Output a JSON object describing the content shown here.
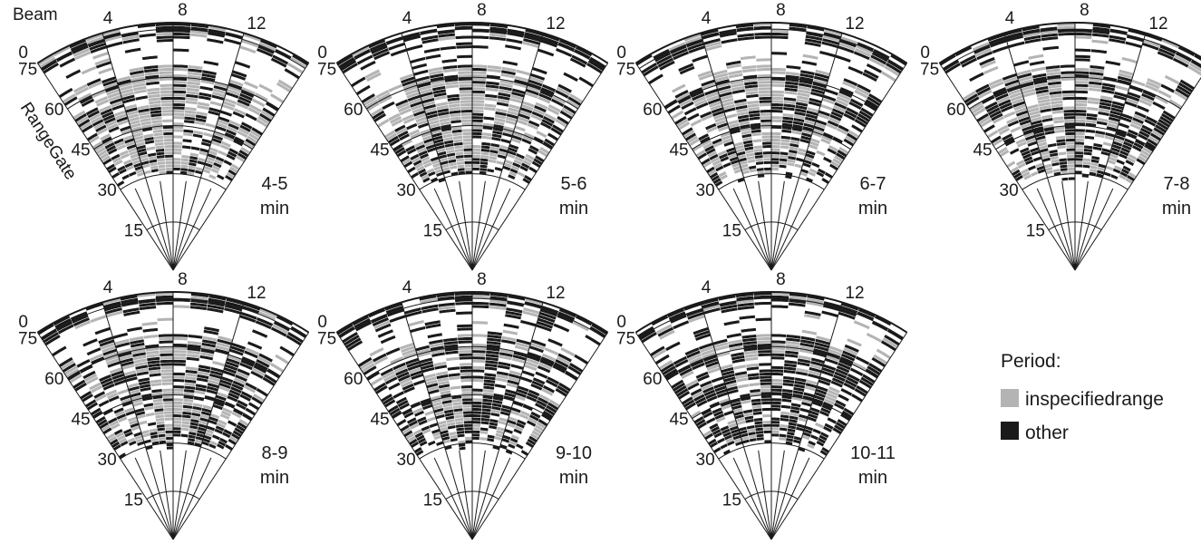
{
  "chart_data": {
    "type": "heatmap",
    "title": "",
    "axis_labels": {
      "beam": "Beam",
      "range_gate": "RangeGate"
    },
    "beam_ticks": [
      "0",
      "4",
      "8",
      "12"
    ],
    "range_gate_ticks": [
      "15",
      "30",
      "45",
      "60",
      "75"
    ],
    "beam_range": [
      0,
      15
    ],
    "range_gate_range": [
      0,
      75
    ],
    "data_gate_range": [
      28,
      77
    ],
    "panels": [
      {
        "line1": "4-5",
        "line2": "min",
        "seed": 11,
        "gray_level": 0.55,
        "black_level": 0.28
      },
      {
        "line1": "5-6",
        "line2": "min",
        "seed": 23,
        "gray_level": 0.5,
        "black_level": 0.3
      },
      {
        "line1": "6-7",
        "line2": "min",
        "seed": 37,
        "gray_level": 0.45,
        "black_level": 0.34
      },
      {
        "line1": "7-8",
        "line2": "min",
        "seed": 41,
        "gray_level": 0.4,
        "black_level": 0.36
      },
      {
        "line1": "8-9",
        "line2": "min",
        "seed": 53,
        "gray_level": 0.38,
        "black_level": 0.38
      },
      {
        "line1": "9-10",
        "line2": "min",
        "seed": 67,
        "gray_level": 0.32,
        "black_level": 0.42
      },
      {
        "line1": "10-11",
        "line2": "min",
        "seed": 79,
        "gray_level": 0.22,
        "black_level": 0.5
      }
    ],
    "legend": {
      "title": "Period:",
      "items": [
        {
          "label": "inspecifiedrange",
          "color": "#b4b4b4"
        },
        {
          "label": "other",
          "color": "#1a1a1a"
        }
      ]
    },
    "colors": {
      "inspecified": "#b4b4b4",
      "other": "#1a1a1a",
      "grid": "#1a1a1a",
      "background": "#ffffff"
    }
  }
}
